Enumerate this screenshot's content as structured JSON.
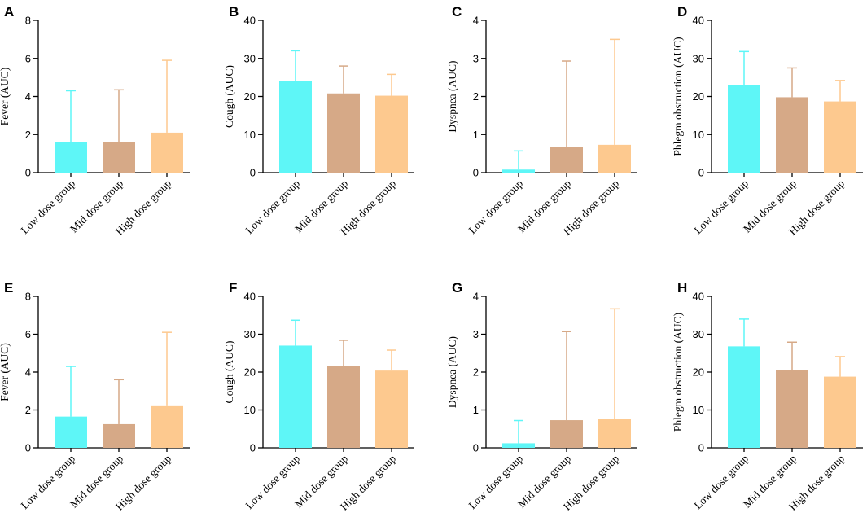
{
  "colors": {
    "low": "#5ef6f7",
    "mid": "#d6a987",
    "high": "#fdc98f"
  },
  "chart_data": [
    {
      "panel": "A",
      "type": "bar",
      "ylabel": "Fever (AUC)",
      "ylim": [
        0,
        8
      ],
      "yticks": [
        0,
        2,
        4,
        6,
        8
      ],
      "categories": [
        "Low dose group",
        "Mid dose group",
        "High dose group"
      ],
      "values": [
        1.6,
        1.6,
        2.1
      ],
      "error_upper": [
        4.3,
        4.35,
        5.9
      ]
    },
    {
      "panel": "B",
      "type": "bar",
      "ylabel": "Cough (AUC)",
      "ylim": [
        0,
        40
      ],
      "yticks": [
        0,
        10,
        20,
        30,
        40
      ],
      "categories": [
        "Low dose group",
        "Mid dose group",
        "High dose group"
      ],
      "values": [
        24,
        20.8,
        20.2
      ],
      "error_upper": [
        32,
        28,
        25.8
      ]
    },
    {
      "panel": "C",
      "type": "bar",
      "ylabel": "Dyspnea (AUC)",
      "ylim": [
        0,
        4
      ],
      "yticks": [
        0,
        1,
        2,
        3,
        4
      ],
      "categories": [
        "Low dose group",
        "Mid dose group",
        "High dose group"
      ],
      "values": [
        0.08,
        0.68,
        0.73
      ],
      "error_upper": [
        0.57,
        2.93,
        3.5
      ]
    },
    {
      "panel": "D",
      "type": "bar",
      "ylabel": "Phlegm obstruction (AUC)",
      "ylim": [
        0,
        40
      ],
      "yticks": [
        0,
        10,
        20,
        30,
        40
      ],
      "categories": [
        "Low dose group",
        "Mid dose group",
        "High dose group"
      ],
      "values": [
        23,
        19.8,
        18.7
      ],
      "error_upper": [
        31.8,
        27.5,
        24.2
      ]
    },
    {
      "panel": "E",
      "type": "bar",
      "ylabel": "Fever (AUC)",
      "ylim": [
        0,
        8
      ],
      "yticks": [
        0,
        2,
        4,
        6,
        8
      ],
      "categories": [
        "Low dose group",
        "Mid dose group",
        "High dose group"
      ],
      "values": [
        1.65,
        1.25,
        2.2
      ],
      "error_upper": [
        4.3,
        3.6,
        6.1
      ]
    },
    {
      "panel": "F",
      "type": "bar",
      "ylabel": "Cough (AUC)",
      "ylim": [
        0,
        40
      ],
      "yticks": [
        0,
        10,
        20,
        30,
        40
      ],
      "categories": [
        "Low dose group",
        "Mid dose group",
        "High dose group"
      ],
      "values": [
        27,
        21.7,
        20.4
      ],
      "error_upper": [
        33.7,
        28.4,
        25.8
      ]
    },
    {
      "panel": "G",
      "type": "bar",
      "ylabel": "Dyspnea (AUC)",
      "ylim": [
        0,
        4
      ],
      "yticks": [
        0,
        1,
        2,
        3,
        4
      ],
      "categories": [
        "Low dose group",
        "Mid dose group",
        "High dose group"
      ],
      "values": [
        0.12,
        0.73,
        0.77
      ],
      "error_upper": [
        0.72,
        3.07,
        3.67
      ]
    },
    {
      "panel": "H",
      "type": "bar",
      "ylabel": "Phlegm obstruction (AUC)",
      "ylim": [
        0,
        40
      ],
      "yticks": [
        0,
        10,
        20,
        30,
        40
      ],
      "categories": [
        "Low dose group",
        "Mid dose group",
        "High dose group"
      ],
      "values": [
        26.8,
        20.5,
        18.8
      ],
      "error_upper": [
        34,
        27.9,
        24.1
      ]
    }
  ]
}
